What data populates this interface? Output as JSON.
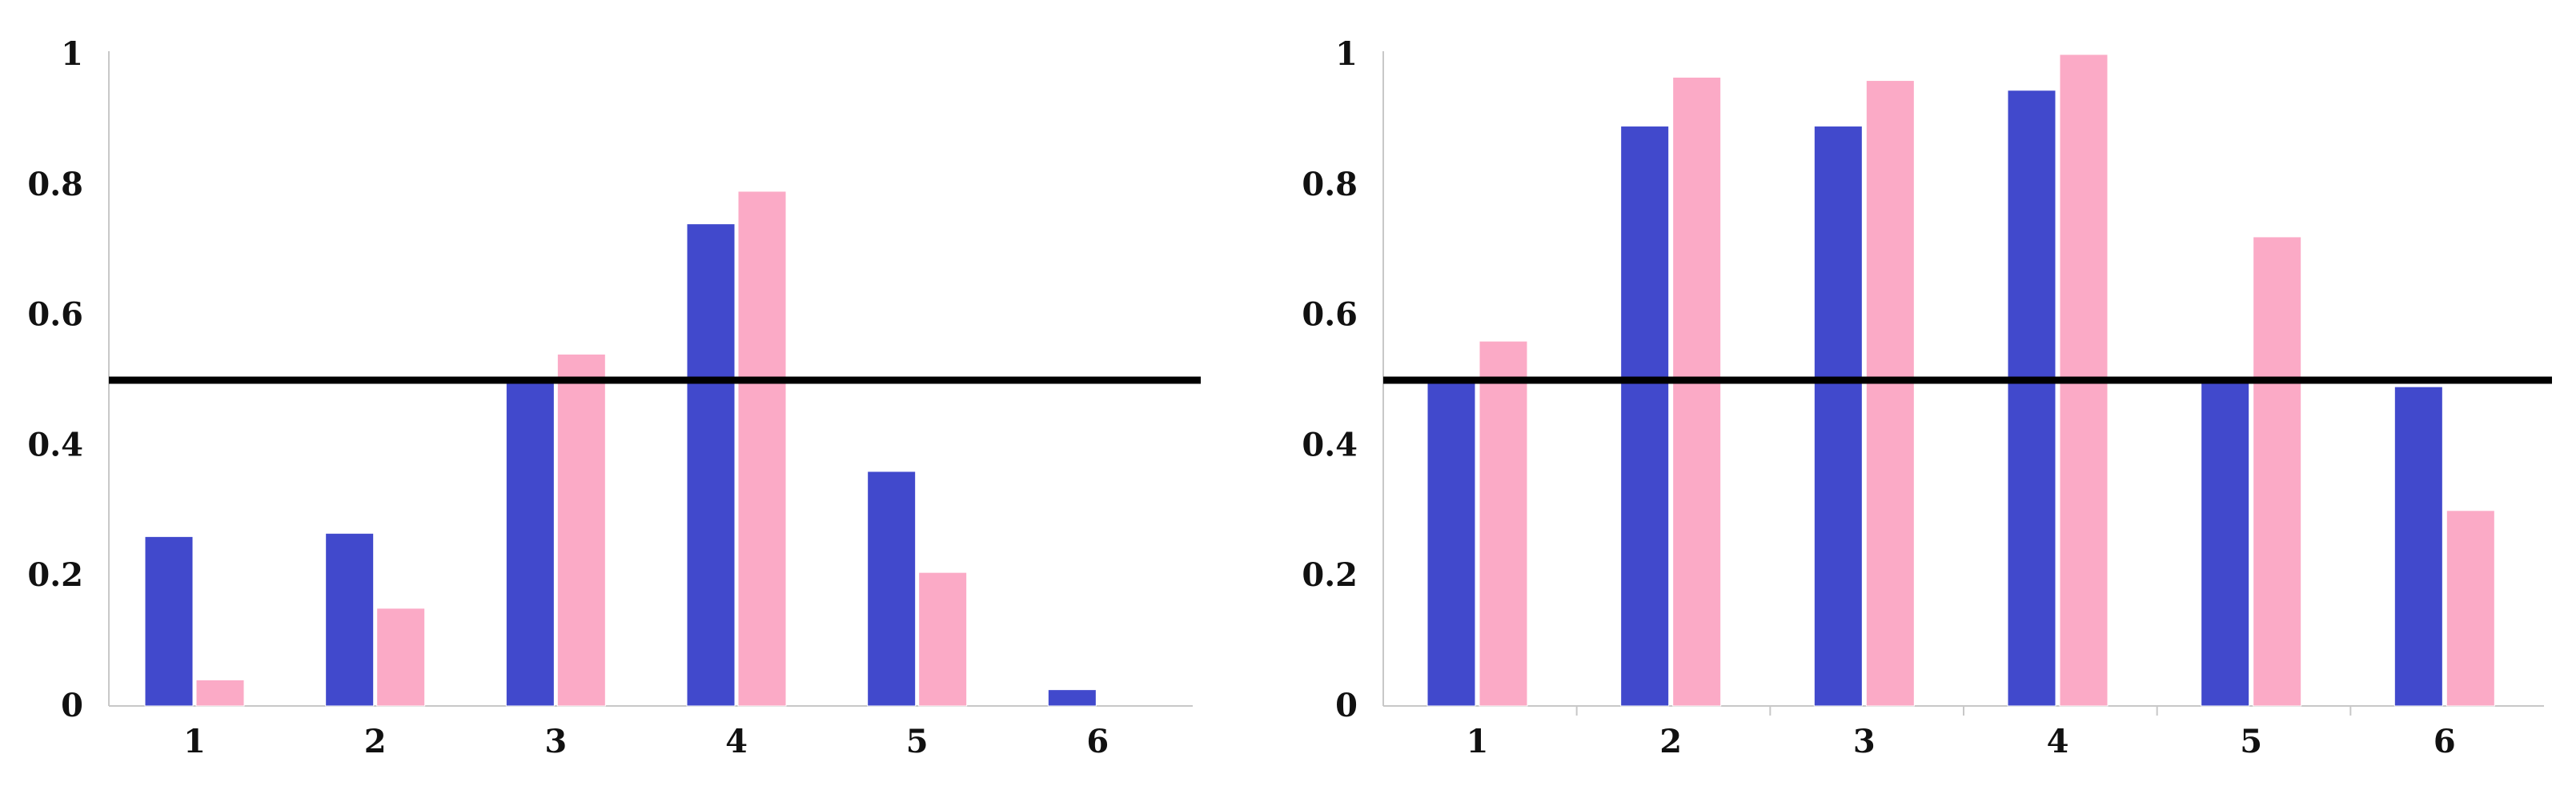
{
  "chart_data": [
    {
      "type": "bar",
      "categories": [
        "1",
        "2",
        "3",
        "4",
        "5",
        "6"
      ],
      "series": [
        {
          "color": "#4149cc",
          "values": [
            0.26,
            0.265,
            0.5,
            0.74,
            0.36,
            0.025
          ]
        },
        {
          "color": "#fbaac6",
          "values": [
            0.04,
            0.15,
            0.54,
            0.79,
            0.205,
            0.0
          ]
        }
      ],
      "yticks": [
        "0",
        "0.2",
        "0.4",
        "0.6",
        "0.8",
        "1"
      ],
      "ylim": [
        0,
        1
      ],
      "reference_line": 0.5,
      "reference_color": "#000000",
      "grid": false,
      "title": "",
      "xlabel": "",
      "ylabel": ""
    },
    {
      "type": "bar",
      "categories": [
        "1",
        "2",
        "3",
        "4",
        "5",
        "6"
      ],
      "series": [
        {
          "color": "#4149cc",
          "values": [
            0.5,
            0.89,
            0.89,
            0.945,
            0.5,
            0.49
          ]
        },
        {
          "color": "#fbaac6",
          "values": [
            0.56,
            0.965,
            0.96,
            1.0,
            0.72,
            0.3
          ]
        }
      ],
      "yticks": [
        "0",
        "0.2",
        "0.4",
        "0.6",
        "0.8",
        "1"
      ],
      "ylim": [
        0,
        1
      ],
      "reference_line": 0.5,
      "reference_color": "#000000",
      "grid": false,
      "title": "",
      "xlabel": "",
      "ylabel": ""
    }
  ]
}
